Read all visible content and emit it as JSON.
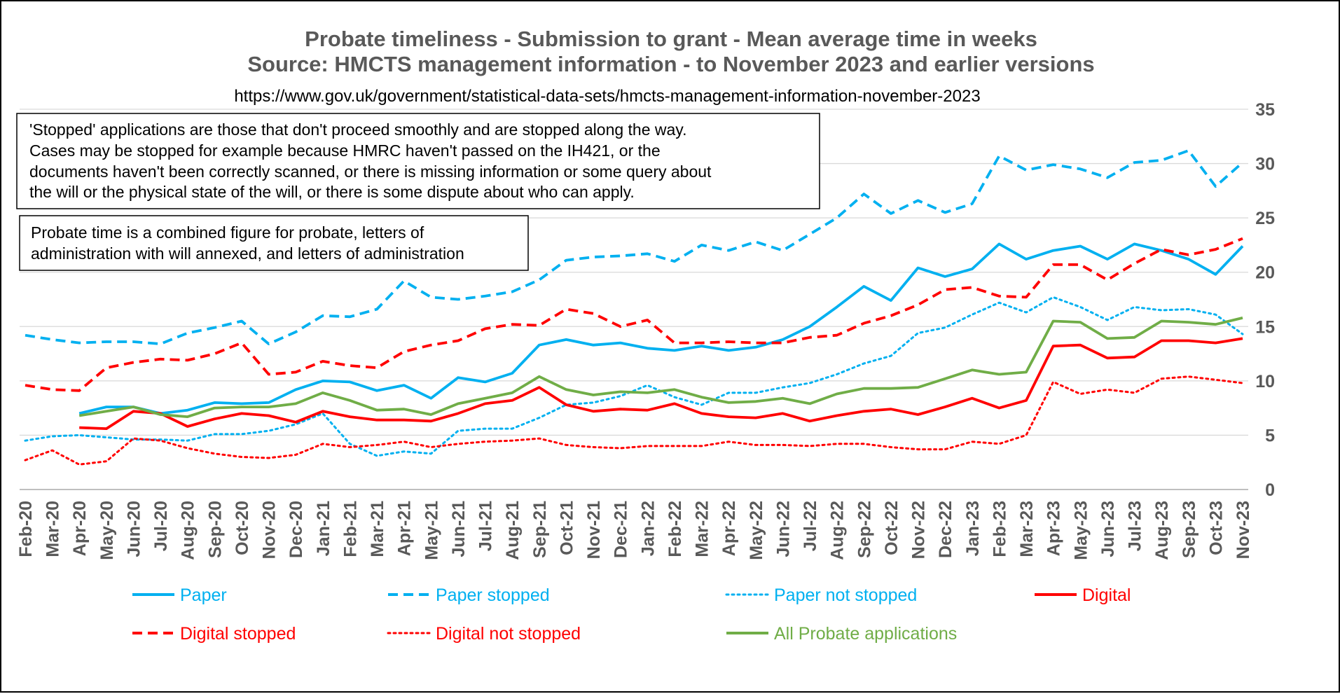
{
  "chart_data": {
    "type": "line",
    "title": "Probate timeliness - Submission to grant - Mean average time in weeks",
    "subtitle": "Source: HMCTS management information - to November 2023 and earlier versions",
    "source_url": "https://www.gov.uk/government/statistical-data-sets/hmcts-management-information-november-2023",
    "notes": [
      {
        "lines": [
          "'Stopped' applications are those that don't proceed smoothly and are stopped along the way.",
          "Cases may be stopped for example because HMRC haven't passed on the IH421, or the",
          "documents haven't been correctly scanned, or there is missing information or some query about",
          "the will or the physical state of the will, or there is some dispute about who can apply."
        ]
      },
      {
        "lines": [
          "Probate time is a combined figure for probate, letters of",
          "administration with will annexed, and letters of administration"
        ]
      }
    ],
    "ylim": [
      0,
      35
    ],
    "yticks": [
      0,
      5,
      10,
      15,
      20,
      25,
      30,
      35
    ],
    "y_axis_position": "right",
    "grid": true,
    "legend_position": "bottom",
    "categories": [
      "Feb-20",
      "Mar-20",
      "Apr-20",
      "May-20",
      "Jun-20",
      "Jul-20",
      "Aug-20",
      "Sep-20",
      "Oct-20",
      "Nov-20",
      "Dec-20",
      "Jan-21",
      "Feb-21",
      "Mar-21",
      "Apr-21",
      "May-21",
      "Jun-21",
      "Jul-21",
      "Aug-21",
      "Sep-21",
      "Oct-21",
      "Nov-21",
      "Dec-21",
      "Jan-22",
      "Feb-22",
      "Mar-22",
      "Apr-22",
      "May-22",
      "Jun-22",
      "Jul-22",
      "Aug-22",
      "Sep-22",
      "Oct-22",
      "Nov-22",
      "Dec-22",
      "Jan-23",
      "Feb-23",
      "Mar-23",
      "Apr-23",
      "May-23",
      "Jun-23",
      "Jul-23",
      "Aug-23",
      "Sep-23",
      "Oct-23",
      "Nov-23"
    ],
    "series": [
      {
        "name": "Paper",
        "color": "#00B0F0",
        "dash": "solid",
        "values": [
          null,
          null,
          7.0,
          7.6,
          7.6,
          7.0,
          7.3,
          8.0,
          7.9,
          8.0,
          9.2,
          10.0,
          9.9,
          9.1,
          9.6,
          8.4,
          10.3,
          9.9,
          10.7,
          13.3,
          13.8,
          13.3,
          13.5,
          13.0,
          12.8,
          13.2,
          12.8,
          13.1,
          13.8,
          15.0,
          16.8,
          18.7,
          17.4,
          20.4,
          19.6,
          20.3,
          22.6,
          21.2,
          22.0,
          22.4,
          21.2,
          22.6,
          22.0,
          21.2,
          19.8,
          22.4
        ]
      },
      {
        "name": "Paper stopped",
        "color": "#00B0F0",
        "dash": "dashed",
        "values": [
          14.2,
          13.8,
          13.5,
          13.6,
          13.6,
          13.4,
          14.4,
          14.9,
          15.5,
          13.4,
          14.5,
          16.0,
          15.9,
          16.6,
          19.2,
          17.7,
          17.5,
          17.8,
          18.2,
          19.3,
          21.1,
          21.4,
          21.5,
          21.7,
          21.0,
          22.5,
          22.0,
          22.8,
          22.0,
          23.5,
          25.0,
          27.2,
          25.4,
          26.6,
          25.5,
          26.3,
          30.7,
          29.4,
          29.9,
          29.5,
          28.7,
          30.1,
          30.3,
          31.2,
          27.9,
          30.1
        ]
      },
      {
        "name": "Paper not stopped",
        "color": "#00B0F0",
        "dash": "dotted",
        "values": [
          4.5,
          4.9,
          5.0,
          4.8,
          4.6,
          4.6,
          4.5,
          5.1,
          5.1,
          5.4,
          6.0,
          7.0,
          4.2,
          3.1,
          3.5,
          3.3,
          5.4,
          5.6,
          5.6,
          6.6,
          7.8,
          8.0,
          8.6,
          9.6,
          8.5,
          7.8,
          8.9,
          8.9,
          9.4,
          9.8,
          10.6,
          11.6,
          12.3,
          14.4,
          14.9,
          16.1,
          17.2,
          16.3,
          17.7,
          16.8,
          15.6,
          16.8,
          16.5,
          16.6,
          16.1,
          14.3
        ]
      },
      {
        "name": "Digital",
        "color": "#FF0000",
        "dash": "solid",
        "values": [
          null,
          null,
          5.7,
          5.6,
          7.2,
          7.0,
          5.8,
          6.5,
          7.0,
          6.8,
          6.2,
          7.2,
          6.7,
          6.4,
          6.4,
          6.3,
          7.0,
          7.9,
          8.2,
          9.4,
          7.8,
          7.2,
          7.4,
          7.3,
          7.9,
          7.0,
          6.7,
          6.6,
          7.0,
          6.3,
          6.8,
          7.2,
          7.4,
          6.9,
          7.6,
          8.4,
          7.5,
          8.2,
          13.2,
          13.3,
          12.1,
          12.2,
          13.7,
          13.7,
          13.5,
          13.9
        ]
      },
      {
        "name": "Digital stopped",
        "color": "#FF0000",
        "dash": "dashed",
        "values": [
          9.6,
          9.2,
          9.1,
          11.2,
          11.7,
          12.0,
          11.9,
          12.5,
          13.5,
          10.6,
          10.8,
          11.8,
          11.4,
          11.2,
          12.7,
          13.3,
          13.7,
          14.8,
          15.2,
          15.1,
          16.6,
          16.2,
          15.0,
          15.6,
          13.5,
          13.5,
          13.6,
          13.5,
          13.5,
          14.0,
          14.2,
          15.3,
          16.0,
          17.0,
          18.4,
          18.6,
          17.8,
          17.7,
          20.7,
          20.7,
          19.3,
          20.8,
          22.1,
          21.6,
          22.1,
          23.1
        ]
      },
      {
        "name": "Digital not stopped",
        "color": "#FF0000",
        "dash": "dotted",
        "values": [
          2.7,
          3.6,
          2.3,
          2.6,
          4.7,
          4.5,
          3.8,
          3.3,
          3.0,
          2.9,
          3.2,
          4.2,
          3.9,
          4.1,
          4.4,
          3.9,
          4.2,
          4.4,
          4.5,
          4.7,
          4.1,
          3.9,
          3.8,
          4.0,
          4.0,
          4.0,
          4.4,
          4.1,
          4.1,
          4.0,
          4.2,
          4.2,
          3.9,
          3.7,
          3.7,
          4.4,
          4.2,
          5.0,
          9.9,
          8.8,
          9.2,
          8.9,
          10.2,
          10.4,
          10.1,
          9.8
        ]
      },
      {
        "name": "All Probate applications",
        "color": "#70AD47",
        "dash": "solid",
        "values": [
          null,
          null,
          6.8,
          7.2,
          7.6,
          6.9,
          6.7,
          7.5,
          7.6,
          7.6,
          7.9,
          8.9,
          8.2,
          7.3,
          7.4,
          6.9,
          7.9,
          8.4,
          8.9,
          10.4,
          9.2,
          8.7,
          9.0,
          8.9,
          9.2,
          8.5,
          8.0,
          8.1,
          8.4,
          7.9,
          8.8,
          9.3,
          9.3,
          9.4,
          10.2,
          11.0,
          10.6,
          10.8,
          15.5,
          15.4,
          13.9,
          14.0,
          15.5,
          15.4,
          15.2,
          15.8
        ]
      }
    ]
  }
}
